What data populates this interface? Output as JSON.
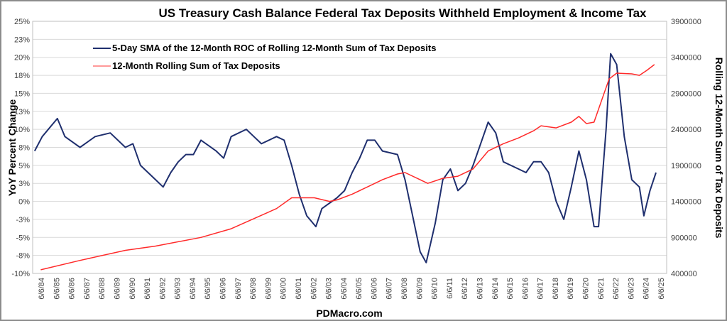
{
  "chart_data": {
    "type": "line",
    "title": "US Treasury Cash Balance Federal Tax Deposits Withheld Employment & Income Tax",
    "xlabel": "PDMacro.com",
    "ylabel": "YoY Percent Change",
    "y2label": "Rolling 12-Month Sum of Tax Deposits",
    "ylim": [
      -10,
      25
    ],
    "y2lim": [
      400000,
      3900000
    ],
    "yticks": [
      "25%",
      "23%",
      "20%",
      "18%",
      "15%",
      "13%",
      "10%",
      "8%",
      "5%",
      "3%",
      "0%",
      "-3%",
      "-5%",
      "-8%",
      "-10%"
    ],
    "y2ticks": [
      "3900000",
      "3400000",
      "2900000",
      "2400000",
      "1900000",
      "1400000",
      "900000",
      "400000"
    ],
    "xticks": [
      "6/6/84",
      "6/6/85",
      "6/6/86",
      "6/6/87",
      "6/6/88",
      "6/6/89",
      "6/6/90",
      "6/6/91",
      "6/6/92",
      "6/6/93",
      "6/6/94",
      "6/6/95",
      "6/6/96",
      "6/6/97",
      "6/6/98",
      "6/6/99",
      "6/6/00",
      "6/6/01",
      "6/6/02",
      "6/6/03",
      "6/6/04",
      "6/6/05",
      "6/6/06",
      "6/6/07",
      "6/6/08",
      "6/6/09",
      "6/6/10",
      "6/6/11",
      "6/6/12",
      "6/6/13",
      "6/6/14",
      "6/6/15",
      "6/6/16",
      "6/6/17",
      "6/6/18",
      "6/6/19",
      "6/6/20",
      "6/6/21",
      "6/6/22",
      "6/6/23",
      "6/6/24",
      "6/6/25"
    ],
    "grid": true,
    "legend_position": "top-left",
    "series": [
      {
        "name": "5-Day SMA of the 12-Month ROC of Rolling 12-Month Sum of Tax Deposits",
        "color": "#1f2f6e",
        "axis": "left",
        "x": [
          1984.0,
          1984.5,
          1985.5,
          1986,
          1987,
          1988,
          1989,
          1990,
          1990.5,
          1991,
          1992,
          1992.5,
          1993,
          1993.5,
          1994,
          1994.5,
          1995,
          1996,
          1996.5,
          1997,
          1998,
          1998.5,
          1999,
          2000,
          2000.5,
          2001,
          2001.5,
          2002,
          2002.6,
          2003,
          2004,
          2004.5,
          2005,
          2005.5,
          2006,
          2006.5,
          2007,
          2008,
          2008.5,
          2009,
          2009.5,
          2009.9,
          2010.5,
          2011,
          2011.5,
          2012,
          2012.5,
          2013,
          2013.5,
          2014,
          2014.5,
          2015,
          2015.5,
          2016,
          2016.5,
          2017,
          2017.5,
          2018,
          2018.5,
          2019,
          2019.5,
          2020,
          2020.5,
          2021,
          2021.3,
          2021.8,
          2022.1,
          2022.5,
          2023,
          2023.5,
          2024,
          2024.3,
          2024.7,
          2025.1
        ],
        "y": [
          7,
          9,
          11.5,
          9,
          7.5,
          9,
          9.5,
          7.5,
          8,
          5,
          3,
          2,
          4,
          5.5,
          6.5,
          6.5,
          8.5,
          7,
          6,
          9,
          10,
          9,
          8,
          9,
          8.5,
          5,
          1,
          -2,
          -3.5,
          -1,
          0.5,
          1.5,
          4,
          6,
          8.5,
          8.5,
          7,
          6.5,
          3,
          -2,
          -7,
          -8.5,
          -3,
          3,
          4.5,
          1.5,
          2.5,
          5,
          8,
          11,
          9.5,
          5.5,
          5,
          4.5,
          4,
          5.5,
          5.5,
          4,
          0,
          -2.5,
          2,
          7,
          3,
          -3.5,
          -3.5,
          10,
          20.5,
          19,
          9,
          3,
          2,
          -2,
          1.5,
          4
        ]
      },
      {
        "name": "12-Month Rolling Sum of Tax Deposits",
        "color": "#ff2a2a",
        "axis": "right",
        "x": [
          1984.4,
          1987,
          1990,
          1992,
          1995,
          1997,
          2000,
          2001,
          2002.5,
          2003.5,
          2004,
          2005,
          2006,
          2007,
          2008,
          2008.5,
          2009.5,
          2010,
          2011,
          2012,
          2013,
          2014,
          2015,
          2016,
          2017,
          2017.5,
          2018.5,
          2019.5,
          2020,
          2020.5,
          2021,
          2021.5,
          2022,
          2022.5,
          2023.5,
          2024,
          2024.5,
          2025
        ],
        "y": [
          450000,
          580000,
          720000,
          780000,
          900000,
          1020000,
          1300000,
          1450000,
          1450000,
          1400000,
          1420000,
          1500000,
          1600000,
          1700000,
          1780000,
          1800000,
          1700000,
          1650000,
          1720000,
          1750000,
          1850000,
          2100000,
          2200000,
          2280000,
          2380000,
          2450000,
          2420000,
          2500000,
          2580000,
          2480000,
          2500000,
          2800000,
          3100000,
          3180000,
          3170000,
          3150000,
          3220000,
          3300000
        ]
      }
    ]
  }
}
